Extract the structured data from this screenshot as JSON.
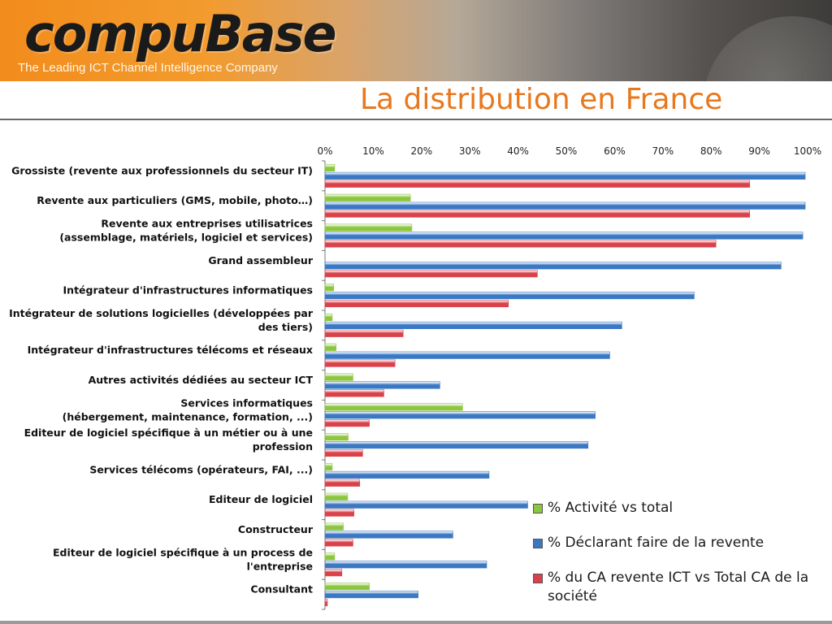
{
  "header": {
    "logo": "compuBase",
    "tagline": "The Leading ICT Channel Intelligence Company",
    "title": "La distribution en France"
  },
  "colors": {
    "activite": "#8cc63f",
    "revente": "#3a78c4",
    "ca": "#d9424a",
    "title": "#e8781e"
  },
  "chart_data": {
    "type": "bar",
    "orientation": "horizontal",
    "xlim": [
      0,
      100
    ],
    "x_ticks": [
      "0%",
      "10%",
      "20%",
      "30%",
      "40%",
      "50%",
      "60%",
      "70%",
      "80%",
      "90%",
      "100%"
    ],
    "x_axis_position": "top",
    "grid": false,
    "legend_position": "bottom-right",
    "categories": [
      [
        "Grossiste (revente aux professionnels du secteur IT)"
      ],
      [
        "Revente aux particuliers (GMS, mobile, photo…)"
      ],
      [
        "Revente aux entreprises utilisatrices",
        "(assemblage, matériels, logiciel et services)"
      ],
      [
        "Grand assembleur"
      ],
      [
        "Intégrateur d'infrastructures informatiques"
      ],
      [
        "Intégrateur de solutions logicielles (développées par",
        "des tiers)"
      ],
      [
        "Intégrateur d'infrastructures télécoms et réseaux"
      ],
      [
        "Autres activités dédiées au secteur ICT"
      ],
      [
        "Services informatiques",
        "(hébergement, maintenance, formation, ...)"
      ],
      [
        "Editeur de logiciel spécifique à un métier ou à une",
        "profession"
      ],
      [
        "Services télécoms (opérateurs, FAI, ...)"
      ],
      [
        "Editeur de logiciel"
      ],
      [
        "Constructeur"
      ],
      [
        "Editeur de logiciel spécifique à un process de",
        "l'entreprise"
      ],
      [
        "Consultant"
      ]
    ],
    "series": [
      {
        "name": "% Activité vs total",
        "values": [
          2,
          17.7,
          18,
          0,
          1.8,
          1.5,
          2.3,
          5.8,
          28.5,
          4.8,
          1.5,
          4.7,
          3.8,
          2,
          9.2
        ]
      },
      {
        "name": "% Déclarant faire de la revente",
        "values": [
          99.5,
          99.5,
          99,
          94.5,
          76.5,
          61.5,
          59,
          23.8,
          56,
          54.5,
          34,
          42,
          26.5,
          33.5,
          19.3
        ]
      },
      {
        "name": "% du CA revente ICT vs Total CA de la société",
        "values": [
          88,
          88,
          81,
          44,
          38,
          16.2,
          14.5,
          12.2,
          9.2,
          7.8,
          7.2,
          6,
          5.8,
          3.5,
          0.5
        ]
      }
    ]
  }
}
